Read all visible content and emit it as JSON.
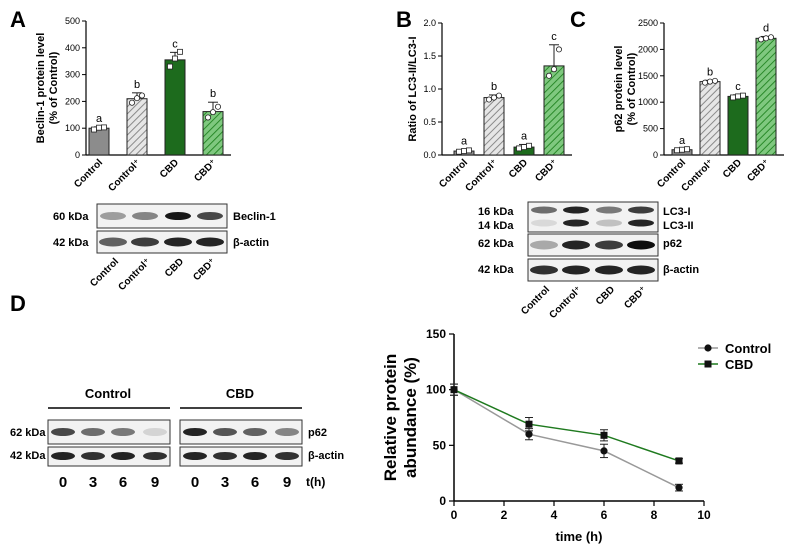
{
  "panels": {
    "A": "A",
    "B": "B",
    "C": "C",
    "D": "D"
  },
  "chart_data": [
    {
      "id": "A",
      "type": "bar",
      "ylabel": "Beclin-1 protein level\n(% of Control)",
      "ylim": [
        0,
        500
      ],
      "yticks": [
        0,
        100,
        200,
        300,
        400,
        500
      ],
      "categories": [
        "Control",
        "Control⁺",
        "CBD",
        "CBD⁺"
      ],
      "values": [
        100,
        210,
        355,
        162
      ],
      "errors": [
        5,
        22,
        28,
        35
      ],
      "letters": [
        "a",
        "b",
        "c",
        "b"
      ],
      "points": [
        [
          95,
          102,
          103
        ],
        [
          195,
          212,
          222
        ],
        [
          330,
          360,
          385
        ],
        [
          140,
          160,
          180
        ]
      ],
      "colors": [
        "#8c8c8c",
        "#c8c8c8",
        "#1d6b1d",
        "#55b055"
      ],
      "hatched": [
        false,
        true,
        false,
        true
      ],
      "grid": false
    },
    {
      "id": "B",
      "type": "bar",
      "ylabel": "Ratio of LC3-II/LC3-I",
      "ylim": [
        0,
        2.0
      ],
      "yticks": [
        "0.0",
        "0.5",
        "1.0",
        "1.5",
        "2.0"
      ],
      "categories": [
        "Control",
        "Control⁺",
        "CBD",
        "CBD⁺"
      ],
      "values": [
        0.06,
        0.87,
        0.12,
        1.35
      ],
      "errors": [
        0.02,
        0.04,
        0.04,
        0.32
      ],
      "letters": [
        "a",
        "b",
        "a",
        "c"
      ],
      "points": [
        [
          0.05,
          0.06,
          0.07
        ],
        [
          0.84,
          0.87,
          0.9
        ],
        [
          0.1,
          0.12,
          0.14
        ],
        [
          1.2,
          1.3,
          1.6
        ]
      ],
      "colors": [
        "#8c8c8c",
        "#c8c8c8",
        "#1d6b1d",
        "#55b055"
      ],
      "hatched": [
        false,
        true,
        false,
        true
      ],
      "grid": false
    },
    {
      "id": "C",
      "type": "bar",
      "ylabel": "p62 protein level\n(% of Control)",
      "ylim": [
        0,
        2500
      ],
      "yticks": [
        0,
        500,
        1000,
        1500,
        2000,
        2500
      ],
      "categories": [
        "Control",
        "Control⁺",
        "CBD",
        "CBD⁺"
      ],
      "values": [
        100,
        1390,
        1110,
        2210
      ],
      "errors": [
        15,
        25,
        30,
        35
      ],
      "letters": [
        "a",
        "b",
        "c",
        "d"
      ],
      "points": [
        [
          90,
          100,
          110
        ],
        [
          1370,
          1390,
          1405
        ],
        [
          1090,
          1110,
          1125
        ],
        [
          2190,
          2210,
          2230
        ]
      ],
      "colors": [
        "#8c8c8c",
        "#c8c8c8",
        "#1d6b1d",
        "#55b055"
      ],
      "hatched": [
        false,
        true,
        false,
        true
      ],
      "grid": false
    },
    {
      "id": "D",
      "type": "line",
      "xlabel": "time (h)",
      "ylabel": "Relative protein\nabundance (%)",
      "xlim": [
        0,
        10
      ],
      "ylim": [
        0,
        150
      ],
      "xticks": [
        0,
        2,
        4,
        6,
        8,
        10
      ],
      "yticks": [
        0,
        50,
        100,
        150
      ],
      "legend_position": "top-right",
      "series": [
        {
          "name": "Control",
          "x": [
            0,
            3,
            6,
            9
          ],
          "y": [
            100,
            60,
            45,
            12
          ],
          "err": [
            5,
            5,
            6,
            3
          ],
          "color": "#999999",
          "marker": "circle"
        },
        {
          "name": "CBD",
          "x": [
            0,
            3,
            6,
            9
          ],
          "y": [
            100,
            69,
            59,
            36
          ],
          "err": [
            5,
            6,
            5,
            2
          ],
          "color": "#1f7a1f",
          "marker": "square"
        }
      ],
      "grid": false
    }
  ],
  "blots": {
    "A": {
      "kda": [
        "60 kDa",
        "42 kDa"
      ],
      "labels": [
        "Beclin-1",
        "β-actin"
      ],
      "lanes": [
        "Control",
        "Control⁺",
        "CBD",
        "CBD⁺"
      ]
    },
    "B": {
      "kda": [
        "16 kDa",
        "14 kDa",
        "62 kDa",
        "42 kDa"
      ],
      "labels": [
        "LC3-I",
        "LC3-II",
        "p62",
        "β-actin"
      ],
      "lanes": [
        "Control",
        "Control⁺",
        "CBD",
        "CBD⁺"
      ]
    },
    "D": {
      "groups": [
        "Control",
        "CBD"
      ],
      "kda": [
        "62 kDa",
        "42 kDa"
      ],
      "labels": [
        "p62",
        "β-actin"
      ],
      "times": [
        "0",
        "3",
        "6",
        "9",
        "0",
        "3",
        "6",
        "9"
      ],
      "time_unit": "t(h)"
    }
  }
}
